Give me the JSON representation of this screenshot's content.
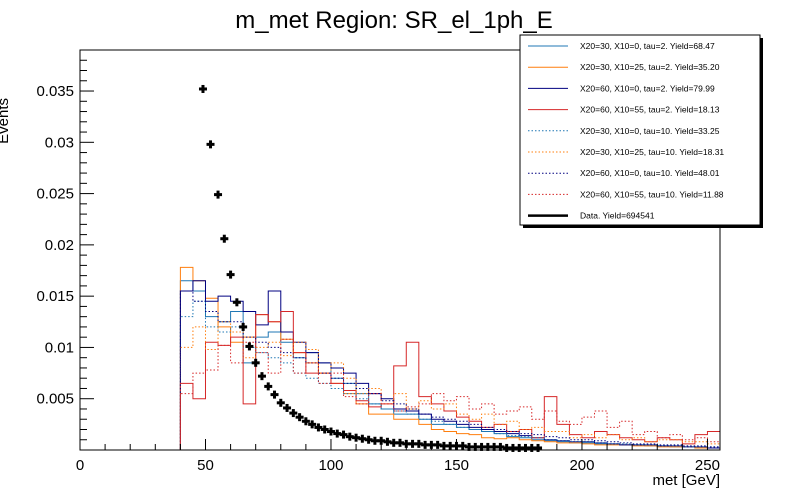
{
  "chart_data": {
    "type": "line",
    "title": "m_met Region: SR_el_1ph_E",
    "xlabel": "met [GeV]",
    "ylabel": "Events",
    "xlim": [
      0,
      255
    ],
    "ylim": [
      0,
      0.039
    ],
    "xticks": [
      0,
      50,
      100,
      150,
      200,
      250
    ],
    "yticks": [
      0.005,
      0.01,
      0.015,
      0.02,
      0.025,
      0.03,
      0.035
    ],
    "ytick_labels": [
      "0.005",
      "0.01",
      "0.015",
      "0.02",
      "0.025",
      "0.03",
      "0.035"
    ],
    "bin_edges": [
      0,
      40,
      45,
      50,
      55,
      60,
      65,
      70,
      75,
      80,
      85,
      90,
      95,
      100,
      105,
      110,
      115,
      120,
      125,
      130,
      135,
      140,
      145,
      150,
      155,
      160,
      165,
      170,
      175,
      180,
      185,
      190,
      195,
      200,
      205,
      210,
      215,
      220,
      225,
      230,
      235,
      240,
      245,
      250,
      255
    ],
    "legend_position": "top-right",
    "series": [
      {
        "name": "X20=30, X10=0, tau=2. Yield=68.47",
        "color": "#1f77b4",
        "style": "solid",
        "values": [
          0,
          0.0165,
          0.0155,
          0.013,
          0.0125,
          0.0135,
          0.0085,
          0.011,
          0.0115,
          0.0105,
          0.009,
          0.0095,
          0.0085,
          0.007,
          0.0065,
          0.0055,
          0.0045,
          0.004,
          0.0035,
          0.0035,
          0.003,
          0.0025,
          0.0025,
          0.0022,
          0.002,
          0.0018,
          0.0016,
          0.0013,
          0.0012,
          0.001,
          0.0009,
          0.0008,
          0.0007,
          0.0007,
          0.0006,
          0.0006,
          0.0005,
          0.0005,
          0.0004,
          0.0004,
          0.0003,
          0.0003,
          0.0002,
          0.0002
        ]
      },
      {
        "name": "X20=30, X10=25, tau=2. Yield=35.20",
        "color": "#ff7f0e",
        "style": "solid",
        "values": [
          0,
          0.0178,
          0.0165,
          0.0148,
          0.012,
          0.0105,
          0.011,
          0.0132,
          0.0125,
          0.0108,
          0.0095,
          0.0085,
          0.0075,
          0.0065,
          0.0055,
          0.0045,
          0.0035,
          0.0035,
          0.003,
          0.003,
          0.0025,
          0.002,
          0.0018,
          0.0016,
          0.0015,
          0.0012,
          0.0011,
          0.0012,
          0.001,
          0.0009,
          0.0008,
          0.0007,
          0.0007,
          0.0006,
          0.0005,
          0.0005,
          0.0005,
          0.0004,
          0.0004,
          0.0003,
          0.0003,
          0.0003,
          0.0002,
          0.0002
        ]
      },
      {
        "name": "X20=60, X10=0, tau=2. Yield=79.99",
        "color": "#000080",
        "style": "solid",
        "values": [
          0,
          0.0155,
          0.0165,
          0.0145,
          0.015,
          0.0145,
          0.0135,
          0.0122,
          0.0155,
          0.0115,
          0.0105,
          0.0095,
          0.0085,
          0.008,
          0.0075,
          0.0065,
          0.0055,
          0.005,
          0.004,
          0.0038,
          0.0035,
          0.003,
          0.0028,
          0.0025,
          0.0022,
          0.002,
          0.0018,
          0.0016,
          0.0014,
          0.0012,
          0.001,
          0.0009,
          0.0008,
          0.0008,
          0.0007,
          0.0006,
          0.0005,
          0.0005,
          0.0005,
          0.0004,
          0.0004,
          0.0003,
          0.0003,
          0.0002
        ]
      },
      {
        "name": "X20=60, X10=55, tau=2. Yield=18.13",
        "color": "#d62728",
        "style": "solid",
        "values": [
          0,
          0.0065,
          0.005,
          0.0105,
          0.0102,
          0.011,
          0.0045,
          0.0132,
          0.0125,
          0.0135,
          0.0095,
          0.0075,
          0.0075,
          0.0065,
          0.0058,
          0.0048,
          0.0042,
          0.0045,
          0.0082,
          0.0105,
          0.0052,
          0.0045,
          0.0038,
          0.0032,
          0.0028,
          0.0022,
          0.0025,
          0.0018,
          0.002,
          0.0012,
          0.0052,
          0.0025,
          0.0015,
          0.0012,
          0.0018,
          0.0015,
          0.0012,
          0.001,
          0.0008,
          0.0012,
          0.001,
          0.0006,
          0.0015,
          0.0018
        ]
      },
      {
        "name": "X20=30, X10=0, tau=10. Yield=33.25",
        "color": "#1f77b4",
        "style": "dotted",
        "values": [
          0,
          0.013,
          0.0145,
          0.012,
          0.0115,
          0.012,
          0.01,
          0.0095,
          0.009,
          0.0085,
          0.0075,
          0.007,
          0.0065,
          0.006,
          0.0055,
          0.005,
          0.0045,
          0.004,
          0.0038,
          0.0035,
          0.003,
          0.0028,
          0.0025,
          0.0022,
          0.002,
          0.0018,
          0.0016,
          0.0014,
          0.0013,
          0.0012,
          0.001,
          0.0009,
          0.0008,
          0.0008,
          0.0007,
          0.0006,
          0.0006,
          0.0005,
          0.0005,
          0.0004,
          0.0004,
          0.0003,
          0.0003,
          0.0003
        ]
      },
      {
        "name": "X20=30, X10=25, tau=10. Yield=18.31",
        "color": "#ff7f0e",
        "style": "dotted",
        "values": [
          0,
          0.01,
          0.012,
          0.0098,
          0.0125,
          0.0115,
          0.009,
          0.01,
          0.0105,
          0.0092,
          0.0105,
          0.0098,
          0.0075,
          0.0085,
          0.007,
          0.0055,
          0.006,
          0.0045,
          0.0055,
          0.004,
          0.0048,
          0.004,
          0.0045,
          0.0035,
          0.003,
          0.0035,
          0.0025,
          0.0028,
          0.002,
          0.0022,
          0.0018,
          0.0018,
          0.0012,
          0.0015,
          0.0012,
          0.0015,
          0.001,
          0.0012,
          0.0008,
          0.001,
          0.001,
          0.0008,
          0.0008,
          0.0006
        ]
      },
      {
        "name": "X20=60, X10=0, tau=10. Yield=48.01",
        "color": "#000080",
        "style": "dotted",
        "values": [
          0,
          0.0155,
          0.0145,
          0.0135,
          0.0125,
          0.0125,
          0.011,
          0.0105,
          0.01,
          0.0095,
          0.009,
          0.0085,
          0.0075,
          0.007,
          0.0065,
          0.006,
          0.0055,
          0.0048,
          0.0045,
          0.004,
          0.0035,
          0.0032,
          0.003,
          0.0028,
          0.0025,
          0.0022,
          0.002,
          0.0018,
          0.0016,
          0.0015,
          0.0013,
          0.0012,
          0.001,
          0.001,
          0.0009,
          0.0008,
          0.0007,
          0.0006,
          0.0006,
          0.0005,
          0.0005,
          0.0004,
          0.0004,
          0.0003
        ]
      },
      {
        "name": "X20=60, X10=55, tau=10. Yield=11.88",
        "color": "#d62728",
        "style": "dotted",
        "values": [
          0,
          0.0055,
          0.0075,
          0.0078,
          0.0102,
          0.0085,
          0.0105,
          0.0095,
          0.0075,
          0.0108,
          0.0075,
          0.0085,
          0.0065,
          0.0075,
          0.0052,
          0.0045,
          0.0055,
          0.0045,
          0.0038,
          0.0042,
          0.0045,
          0.0055,
          0.0048,
          0.0052,
          0.004,
          0.0045,
          0.0035,
          0.0038,
          0.0042,
          0.003,
          0.0038,
          0.0028,
          0.0025,
          0.0032,
          0.0038,
          0.0022,
          0.0028,
          0.0015,
          0.0018,
          0.0012,
          0.0015,
          0.001,
          0.0012,
          0.0008
        ]
      },
      {
        "name": "Data. Yield=694541",
        "color": "#000000",
        "style": "markers",
        "x": [
          49,
          52,
          55,
          57.5,
          60,
          62.5,
          65,
          67.5,
          70,
          72.5,
          75,
          77.5,
          80,
          82.5,
          85,
          87.5,
          90,
          92.5,
          95,
          97.5,
          100,
          102.5,
          105,
          107.5,
          110,
          112.5,
          115,
          117.5,
          120,
          122.5,
          125,
          127.5,
          130,
          132.5,
          135,
          137.5,
          140,
          142.5,
          145,
          147.5,
          150,
          152.5,
          155,
          157.5,
          160,
          162.5,
          165,
          167.5,
          170,
          172.5,
          175,
          177.5,
          180,
          182.5
        ],
        "values": [
          0.0352,
          0.0298,
          0.0249,
          0.0206,
          0.0171,
          0.0144,
          0.012,
          0.0101,
          0.0085,
          0.0072,
          0.0062,
          0.0054,
          0.0046,
          0.0041,
          0.0036,
          0.0032,
          0.0028,
          0.0025,
          0.0022,
          0.002,
          0.0018,
          0.0016,
          0.0015,
          0.0013,
          0.0012,
          0.0011,
          0.001,
          0.0009,
          0.0009,
          0.0008,
          0.0007,
          0.0007,
          0.0006,
          0.0006,
          0.0006,
          0.0005,
          0.0005,
          0.0005,
          0.0004,
          0.0004,
          0.0004,
          0.0004,
          0.0003,
          0.0003,
          0.0003,
          0.0003,
          0.0003,
          0.0003,
          0.0002,
          0.0002,
          0.0002,
          0.0002,
          0.0002,
          0.0002
        ]
      }
    ]
  }
}
